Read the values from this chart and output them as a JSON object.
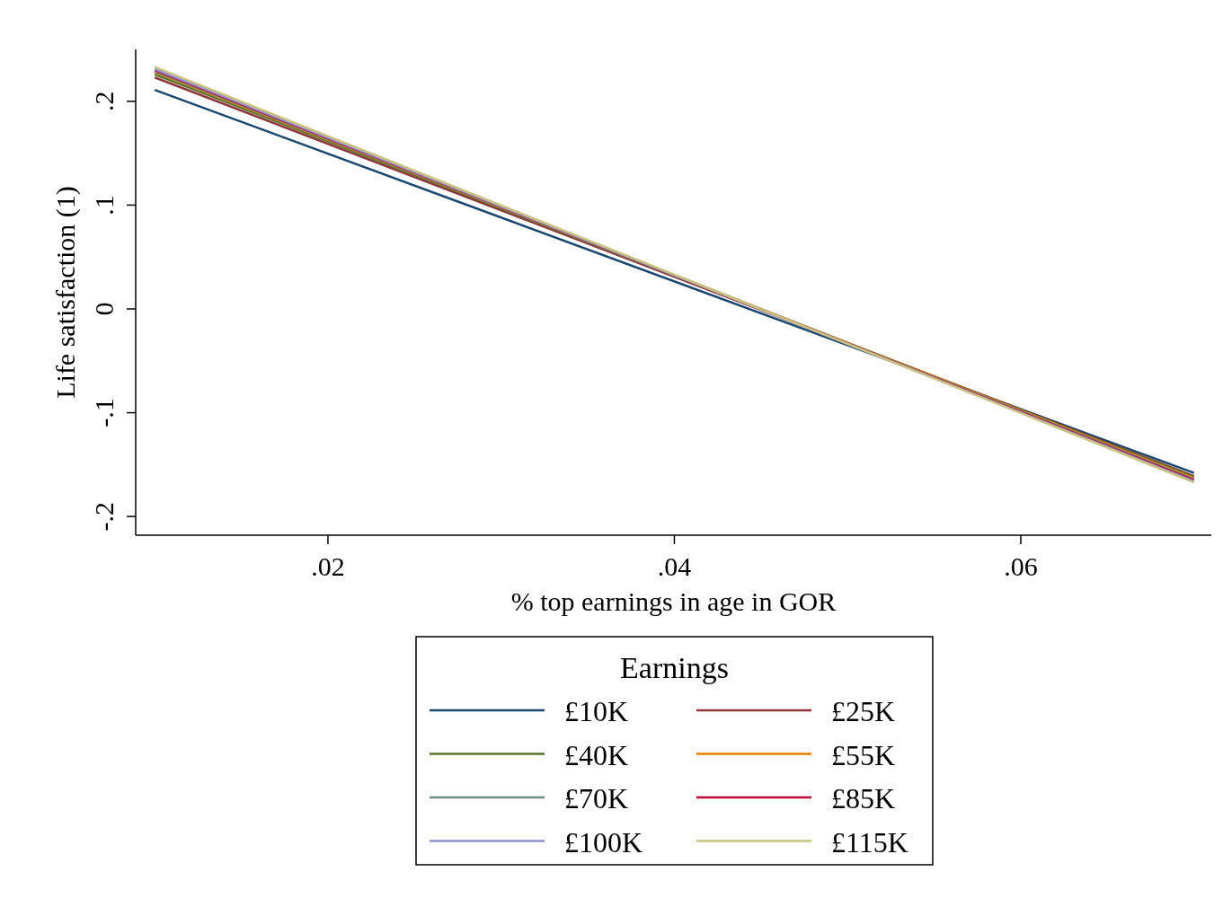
{
  "chart_data": {
    "type": "line",
    "xlabel": "% top earnings in age in GOR",
    "ylabel": "Life satisfaction (1)",
    "legend_title": "Earnings",
    "legend": "bottom",
    "grid": false,
    "marker": "none",
    "line_style": "solid",
    "x": [
      0.01,
      0.07
    ],
    "xlim": [
      0.0089,
      0.071
    ],
    "xticks": [
      {
        "value": 0.02,
        "label": ".02"
      },
      {
        "value": 0.04,
        "label": ".04"
      },
      {
        "value": 0.06,
        "label": ".06"
      }
    ],
    "ylim": [
      -0.218,
      0.25
    ],
    "yticks": [
      {
        "value": -0.2,
        "label": "-.2"
      },
      {
        "value": -0.1,
        "label": "-.1"
      },
      0,
      {
        "value": 0.1,
        "label": ".1"
      },
      {
        "value": 0.2,
        "label": ".2"
      }
    ],
    "series": [
      {
        "name": "£10K",
        "color": "#1a476f",
        "values": [
          0.211,
          -0.158
        ]
      },
      {
        "name": "£25K",
        "color": "#90353b",
        "values": [
          0.223,
          -0.161
        ]
      },
      {
        "name": "£40K",
        "color": "#55752f",
        "values": [
          0.226,
          -0.162
        ]
      },
      {
        "name": "£55K",
        "color": "#e37e00",
        "values": [
          0.228,
          -0.163
        ]
      },
      {
        "name": "£70K",
        "color": "#6e8e84",
        "values": [
          0.229,
          -0.164
        ]
      },
      {
        "name": "£85K",
        "color": "#c10534",
        "values": [
          0.23,
          -0.165
        ]
      },
      {
        "name": "£100K",
        "color": "#938dd2",
        "values": [
          0.231,
          -0.166
        ]
      },
      {
        "name": "£115K",
        "color": "#cac27e",
        "values": [
          0.233,
          -0.167
        ]
      }
    ]
  }
}
